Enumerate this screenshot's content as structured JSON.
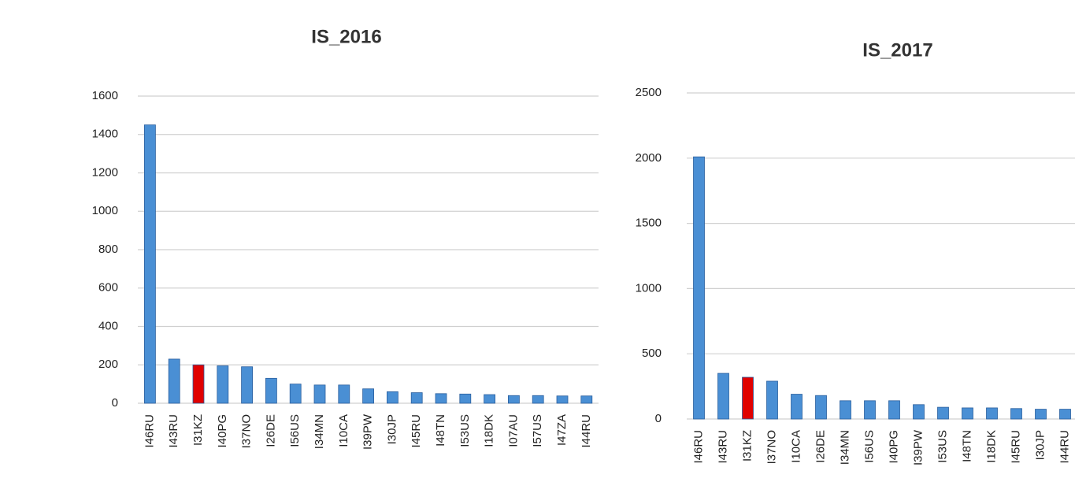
{
  "chart_data": [
    {
      "type": "bar",
      "title": "IS_2016",
      "categories": [
        "I46RU",
        "I43RU",
        "I31KZ",
        "I40PG",
        "I37NO",
        "I26DE",
        "I56US",
        "I34MN",
        "I10CA",
        "I39PW",
        "I30JP",
        "I45RU",
        "I48TN",
        "I53US",
        "I18DK",
        "I07AU",
        "I57US",
        "I47ZA",
        "I44RU"
      ],
      "values": [
        1450,
        230,
        200,
        195,
        190,
        130,
        100,
        95,
        95,
        75,
        60,
        55,
        50,
        48,
        45,
        40,
        40,
        38,
        38
      ],
      "colors": [
        "#4a8fd4",
        "#4a8fd4",
        "#e00000",
        "#4a8fd4",
        "#4a8fd4",
        "#4a8fd4",
        "#4a8fd4",
        "#4a8fd4",
        "#4a8fd4",
        "#4a8fd4",
        "#4a8fd4",
        "#4a8fd4",
        "#4a8fd4",
        "#4a8fd4",
        "#4a8fd4",
        "#4a8fd4",
        "#4a8fd4",
        "#4a8fd4",
        "#4a8fd4"
      ],
      "ylim": [
        0,
        1600
      ],
      "yticks": [
        0,
        200,
        400,
        600,
        800,
        1000,
        1200,
        1400,
        1600
      ],
      "grid": true
    },
    {
      "type": "bar",
      "title": "IS_2017",
      "categories": [
        "I46RU",
        "I43RU",
        "I31KZ",
        "I37NO",
        "I10CA",
        "I26DE",
        "I34MN",
        "I56US",
        "I40PG",
        "I39PW",
        "I53US",
        "I48TN",
        "I18DK",
        "I45RU",
        "I30JP",
        "I44RU"
      ],
      "values": [
        2010,
        350,
        320,
        290,
        190,
        180,
        140,
        140,
        140,
        110,
        90,
        85,
        85,
        80,
        75,
        75
      ],
      "colors": [
        "#4a8fd4",
        "#4a8fd4",
        "#e00000",
        "#4a8fd4",
        "#4a8fd4",
        "#4a8fd4",
        "#4a8fd4",
        "#4a8fd4",
        "#4a8fd4",
        "#4a8fd4",
        "#4a8fd4",
        "#4a8fd4",
        "#4a8fd4",
        "#4a8fd4",
        "#4a8fd4",
        "#4a8fd4"
      ],
      "ylim": [
        0,
        2500
      ],
      "yticks": [
        0,
        500,
        1000,
        1500,
        2000,
        2500
      ],
      "grid": true
    }
  ]
}
